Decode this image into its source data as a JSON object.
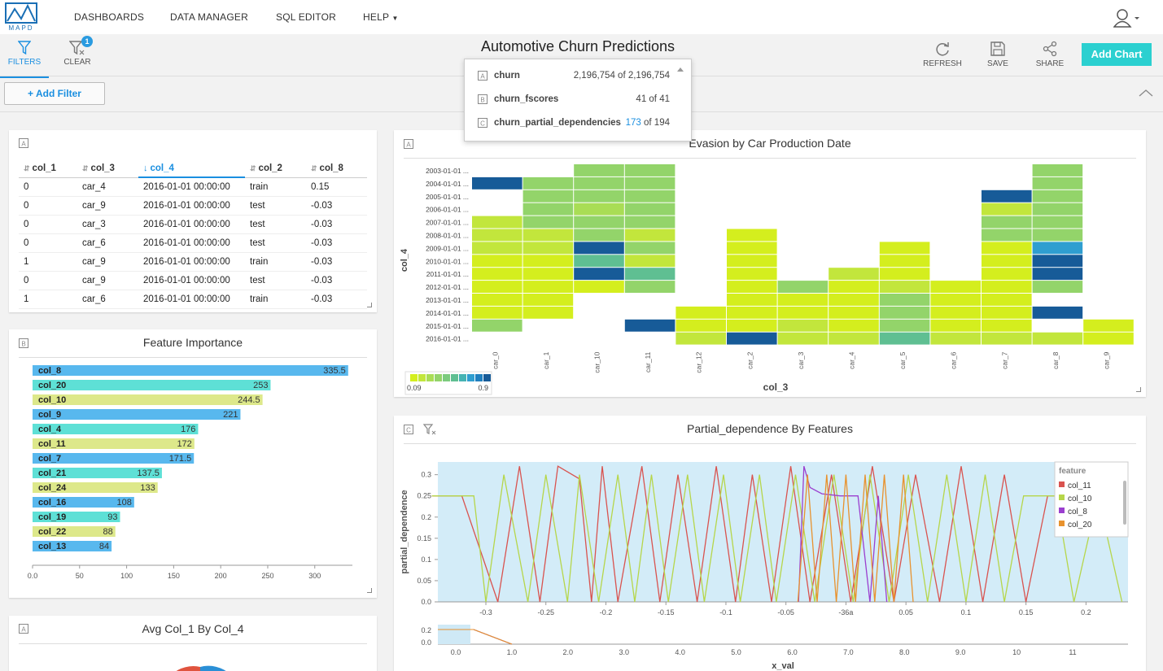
{
  "nav": {
    "logo_text": "MAPD",
    "items": [
      "DASHBOARDS",
      "DATA MANAGER",
      "SQL EDITOR",
      "HELP"
    ]
  },
  "toolbar": {
    "filters_label": "FILTERS",
    "clear_label": "CLEAR",
    "clear_badge": "1",
    "title": "Automotive Churn Predictions",
    "refresh_label": "REFRESH",
    "save_label": "SAVE",
    "share_label": "SHARE",
    "add_chart_label": "Add Chart"
  },
  "filterbar": {
    "add_filter_label": "+ Add Filter"
  },
  "datasources": [
    {
      "name": "churn",
      "count": "2,196,754 of 2,196,754",
      "filtered": "",
      "rest": ""
    },
    {
      "name": "churn_fscores",
      "count": "41 of 41",
      "filtered": "",
      "rest": ""
    },
    {
      "name": "churn_partial_dependencies",
      "count": "",
      "filtered": "173",
      "rest": " of 194"
    }
  ],
  "table_panel": {
    "columns": [
      "col_1",
      "col_3",
      "col_4",
      "col_2",
      "col_8"
    ],
    "rows": [
      [
        "0",
        "car_4",
        "2016-01-01 00:00:00",
        "train",
        "0.15"
      ],
      [
        "0",
        "car_9",
        "2016-01-01 00:00:00",
        "test",
        "-0.03"
      ],
      [
        "0",
        "car_3",
        "2016-01-01 00:00:00",
        "test",
        "-0.03"
      ],
      [
        "0",
        "car_6",
        "2016-01-01 00:00:00",
        "test",
        "-0.03"
      ],
      [
        "1",
        "car_9",
        "2016-01-01 00:00:00",
        "train",
        "-0.03"
      ],
      [
        "0",
        "car_9",
        "2016-01-01 00:00:00",
        "test",
        "-0.03"
      ],
      [
        "1",
        "car_6",
        "2016-01-01 00:00:00",
        "train",
        "-0.03"
      ]
    ]
  },
  "colors": {
    "accent": "#1a8fe0",
    "teal": "#2bd0d0",
    "bar_blue": "#58b8ee",
    "bar_teal": "#5ee0d6",
    "bar_yellow": "#dde88a"
  },
  "chart_data": [
    {
      "type": "bar",
      "title": "Feature Importance",
      "orientation": "horizontal",
      "categories": [
        "col_8",
        "col_20",
        "col_10",
        "col_9",
        "col_4",
        "col_11",
        "col_7",
        "col_21",
        "col_24",
        "col_16",
        "col_19",
        "col_22",
        "col_13"
      ],
      "values": [
        335.5,
        253,
        244.5,
        221,
        176,
        172,
        171.5,
        137.5,
        133,
        108,
        93,
        88,
        84
      ],
      "xticks": [
        "0.0",
        "50",
        "100",
        "150",
        "200",
        "250",
        "300"
      ],
      "xlim": [
        0,
        340
      ]
    },
    {
      "type": "heatmap",
      "title": "Evasion by Car Production Date",
      "xlabel": "col_3",
      "ylabel": "col_4",
      "x": [
        "car_0",
        "car_1",
        "car_10",
        "car_11",
        "car_12",
        "car_2",
        "car_3",
        "car_4",
        "car_5",
        "car_6",
        "car_7",
        "car_8",
        "car_9"
      ],
      "y": [
        "2003-01-01 ...",
        "2004-01-01 ...",
        "2005-01-01 ...",
        "2006-01-01 ...",
        "2007-01-01 ...",
        "2008-01-01 ...",
        "2009-01-01 ...",
        "2010-01-01 ...",
        "2011-01-01 ...",
        "2012-01-01 ...",
        "2013-01-01 ...",
        "2014-01-01 ...",
        "2015-01-01 ...",
        "2016-01-01 ..."
      ],
      "values": [
        [
          null,
          null,
          0.4,
          0.4,
          null,
          null,
          null,
          null,
          null,
          null,
          null,
          0.4,
          null
        ],
        [
          0.9,
          0.4,
          0.4,
          0.4,
          null,
          null,
          null,
          null,
          null,
          null,
          null,
          0.4,
          null
        ],
        [
          null,
          0.4,
          0.4,
          0.4,
          null,
          null,
          null,
          null,
          null,
          null,
          0.9,
          0.4,
          null
        ],
        [
          null,
          0.4,
          0.25,
          0.4,
          null,
          null,
          null,
          null,
          null,
          null,
          0.2,
          0.4,
          null
        ],
        [
          0.2,
          0.4,
          0.4,
          0.4,
          null,
          null,
          null,
          null,
          null,
          null,
          0.4,
          0.4,
          null
        ],
        [
          0.2,
          0.2,
          0.4,
          0.2,
          null,
          0.1,
          null,
          null,
          null,
          null,
          0.4,
          0.4,
          null
        ],
        [
          0.2,
          0.2,
          0.9,
          0.4,
          null,
          0.1,
          null,
          null,
          0.1,
          null,
          0.1,
          0.7,
          null
        ],
        [
          0.1,
          0.1,
          0.55,
          0.2,
          null,
          0.1,
          null,
          null,
          0.1,
          null,
          0.1,
          0.9,
          null
        ],
        [
          0.1,
          0.1,
          0.9,
          0.55,
          null,
          0.1,
          null,
          0.2,
          0.1,
          null,
          0.1,
          0.9,
          null
        ],
        [
          0.1,
          0.1,
          0.1,
          0.4,
          null,
          0.1,
          0.4,
          0.1,
          0.2,
          0.1,
          0.1,
          0.4,
          null
        ],
        [
          0.1,
          0.1,
          null,
          null,
          null,
          0.1,
          0.1,
          0.1,
          0.4,
          0.1,
          0.1,
          null,
          null
        ],
        [
          0.1,
          0.1,
          null,
          null,
          0.1,
          0.1,
          0.1,
          0.1,
          0.4,
          0.1,
          0.1,
          0.9,
          null
        ],
        [
          0.4,
          null,
          null,
          0.9,
          0.1,
          0.1,
          0.2,
          0.1,
          0.4,
          0.1,
          0.1,
          null,
          0.1
        ],
        [
          null,
          null,
          null,
          null,
          0.2,
          0.9,
          0.2,
          0.2,
          0.55,
          0.2,
          0.2,
          0.2,
          0.1
        ]
      ],
      "legend_min": "0.09",
      "legend_max": "0.9"
    },
    {
      "type": "line",
      "title": "Partial_dependence By Features",
      "xlabel": "x_val",
      "ylabel": "partial_dependence",
      "yticks": [
        "0.0",
        "0.05",
        "0.1",
        "0.15",
        "0.2",
        "0.25",
        "0.3"
      ],
      "xticks": [
        "-0.3",
        "-0.25",
        "-0.2",
        "-0.15",
        "-0.1",
        "-0.05",
        "-36a",
        "0.05",
        "0.1",
        "0.15",
        "0.2"
      ],
      "ylim": [
        0,
        0.33
      ],
      "legend_title": "feature",
      "series": [
        {
          "name": "col_11",
          "color": "#d9534f",
          "points": [
            [
              -0.345,
              0.25
            ],
            [
              -0.32,
              0.25
            ],
            [
              -0.29,
              0
            ],
            [
              -0.272,
              0.32
            ],
            [
              -0.255,
              0
            ],
            [
              -0.24,
              0.32
            ],
            [
              -0.222,
              0.29
            ],
            [
              -0.212,
              0
            ],
            [
              -0.203,
              0.32
            ],
            [
              -0.19,
              0
            ],
            [
              -0.17,
              0.32
            ],
            [
              -0.155,
              0
            ],
            [
              -0.14,
              0.3
            ],
            [
              -0.124,
              0
            ],
            [
              -0.108,
              0.32
            ],
            [
              -0.092,
              0
            ],
            [
              -0.078,
              0.3
            ],
            [
              -0.062,
              0
            ],
            [
              -0.046,
              0.32
            ],
            [
              -0.03,
              0
            ],
            [
              -0.012,
              0.3
            ],
            [
              0.004,
              0
            ],
            [
              0.022,
              0.32
            ],
            [
              0.04,
              0
            ],
            [
              0.058,
              0.3
            ],
            [
              0.078,
              0
            ],
            [
              0.096,
              0.32
            ],
            [
              0.114,
              0
            ],
            [
              0.132,
              0.3
            ],
            [
              0.15,
              0
            ],
            [
              0.168,
              0.25
            ],
            [
              0.183,
              0.25
            ]
          ]
        },
        {
          "name": "col_10",
          "color": "#b6d64a",
          "points": [
            [
              -0.345,
              0.25
            ],
            [
              -0.31,
              0.25
            ],
            [
              -0.3,
              0
            ],
            [
              -0.285,
              0.3
            ],
            [
              -0.265,
              0
            ],
            [
              -0.25,
              0.3
            ],
            [
              -0.232,
              0
            ],
            [
              -0.222,
              0.3
            ],
            [
              -0.206,
              0
            ],
            [
              -0.19,
              0.3
            ],
            [
              -0.176,
              0
            ],
            [
              -0.162,
              0.3
            ],
            [
              -0.148,
              0
            ],
            [
              -0.132,
              0.3
            ],
            [
              -0.118,
              0
            ],
            [
              -0.102,
              0.3
            ],
            [
              -0.088,
              0
            ],
            [
              -0.072,
              0.3
            ],
            [
              -0.058,
              0
            ],
            [
              -0.042,
              0.3
            ],
            [
              -0.026,
              0
            ],
            [
              -0.01,
              0.3
            ],
            [
              0.006,
              0
            ],
            [
              0.02,
              0.3
            ],
            [
              0.036,
              0
            ],
            [
              0.052,
              0.3
            ],
            [
              0.068,
              0
            ],
            [
              0.084,
              0.3
            ],
            [
              0.1,
              0
            ],
            [
              0.116,
              0.3
            ],
            [
              0.132,
              0
            ],
            [
              0.148,
              0.25
            ],
            [
              0.16,
              0.25
            ],
            [
              0.175,
              0.25
            ],
            [
              0.19,
              0
            ],
            [
              0.21,
              0.25
            ],
            [
              0.23,
              0
            ]
          ]
        },
        {
          "name": "col_8",
          "color": "#9b3fcf",
          "points": [
            [
              -0.0395,
              0
            ],
            [
              -0.035,
              0.32
            ],
            [
              -0.03,
              0.27
            ],
            [
              -0.02,
              0.255
            ],
            [
              -0.005,
              0.25
            ],
            [
              0.01,
              0.25
            ],
            [
              0.02,
              0
            ],
            [
              0.027,
              0.25
            ],
            [
              0.034,
              0
            ]
          ]
        },
        {
          "name": "col_20",
          "color": "#e8922e",
          "points": [
            [
              -0.04,
              0
            ],
            [
              -0.032,
              0.3
            ],
            [
              -0.024,
              0
            ],
            [
              -0.016,
              0.3
            ],
            [
              -0.008,
              0
            ],
            [
              0.0,
              0.3
            ],
            [
              0.008,
              0
            ],
            [
              0.016,
              0.3
            ],
            [
              0.024,
              0
            ],
            [
              0.032,
              0.3
            ],
            [
              0.04,
              0
            ],
            [
              0.048,
              0.3
            ],
            [
              0.056,
              0
            ]
          ]
        }
      ],
      "range_xticks": [
        "0.0",
        "1.0",
        "2.0",
        "3.0",
        "4.0",
        "5.0",
        "6.0",
        "7.0",
        "8.0",
        "9.0",
        "10",
        "11"
      ],
      "range_yticks": [
        "0.2",
        "0.0"
      ]
    },
    {
      "type": "pie",
      "title": "Avg Col_1 By Col_4"
    }
  ]
}
